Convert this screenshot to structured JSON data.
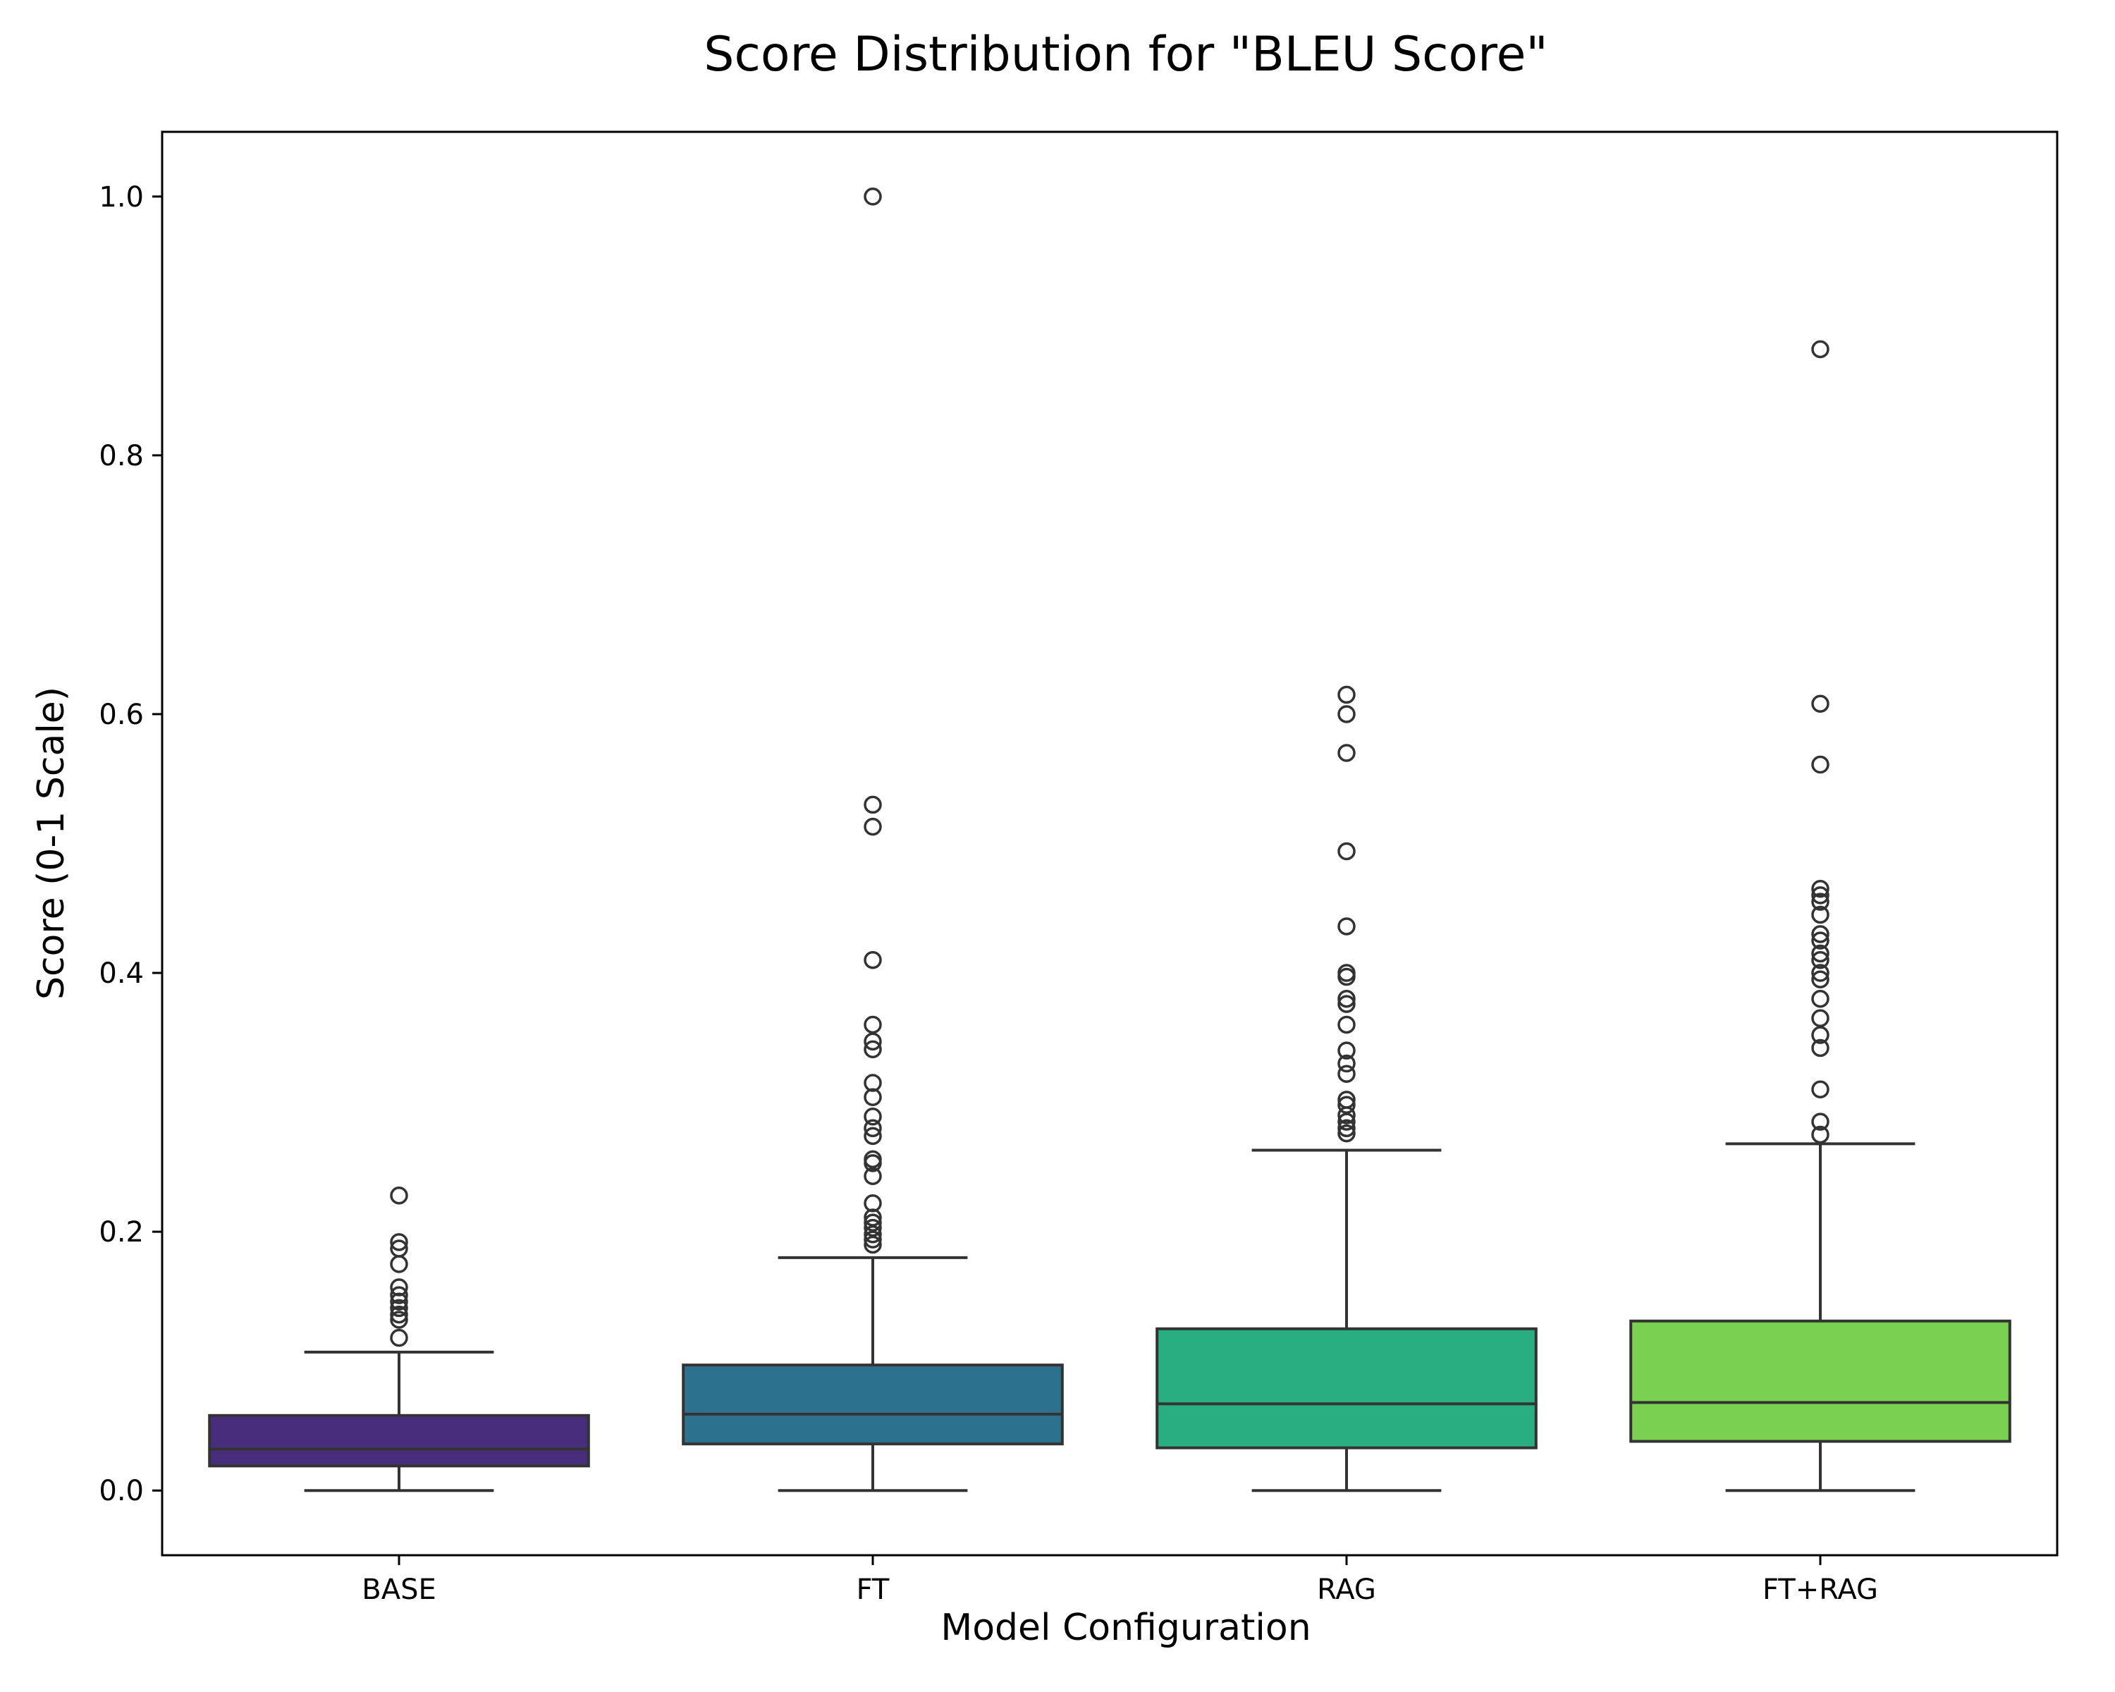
{
  "chart_data": {
    "type": "box",
    "title": "Score Distribution for \"BLEU Score\"",
    "xlabel": "Model Configuration",
    "ylabel": "Score (0-1 Scale)",
    "ylim": [
      -0.05,
      1.05
    ],
    "yticks": [
      0.0,
      0.2,
      0.4,
      0.6,
      0.8,
      1.0
    ],
    "ytick_labels": [
      "0.0",
      "0.2",
      "0.4",
      "0.6",
      "0.8",
      "1.0"
    ],
    "grid": false,
    "categories": [
      "BASE",
      "FT",
      "RAG",
      "FT+RAG"
    ],
    "series": [
      {
        "category": "BASE",
        "color": "#472d7b",
        "whisker_low": 0.0,
        "q1": 0.019,
        "median": 0.032,
        "q3": 0.058,
        "whisker_high": 0.107,
        "outliers": [
          0.228,
          0.192,
          0.187,
          0.175,
          0.157,
          0.151,
          0.146,
          0.141,
          0.136,
          0.132,
          0.118
        ]
      },
      {
        "category": "FT",
        "color": "#2c728e",
        "whisker_low": 0.0,
        "q1": 0.036,
        "median": 0.059,
        "q3": 0.097,
        "whisker_high": 0.18,
        "outliers": [
          1.0,
          0.53,
          0.513,
          0.41,
          0.36,
          0.347,
          0.341,
          0.315,
          0.304,
          0.289,
          0.28,
          0.274,
          0.256,
          0.253,
          0.243,
          0.222,
          0.211,
          0.207,
          0.203,
          0.198,
          0.194,
          0.19
        ]
      },
      {
        "category": "RAG",
        "color": "#28ae80",
        "whisker_low": 0.0,
        "q1": 0.033,
        "median": 0.067,
        "q3": 0.125,
        "whisker_high": 0.263,
        "outliers": [
          0.615,
          0.6,
          0.57,
          0.494,
          0.436,
          0.4,
          0.397,
          0.38,
          0.376,
          0.36,
          0.34,
          0.33,
          0.322,
          0.302,
          0.298,
          0.29,
          0.285,
          0.28,
          0.276
        ]
      },
      {
        "category": "FT+RAG",
        "color": "#7ad151",
        "whisker_low": 0.0,
        "q1": 0.038,
        "median": 0.068,
        "q3": 0.131,
        "whisker_high": 0.268,
        "outliers": [
          0.882,
          0.608,
          0.561,
          0.465,
          0.46,
          0.455,
          0.445,
          0.43,
          0.425,
          0.415,
          0.41,
          0.4,
          0.395,
          0.38,
          0.365,
          0.352,
          0.342,
          0.31,
          0.285,
          0.275
        ]
      }
    ]
  }
}
